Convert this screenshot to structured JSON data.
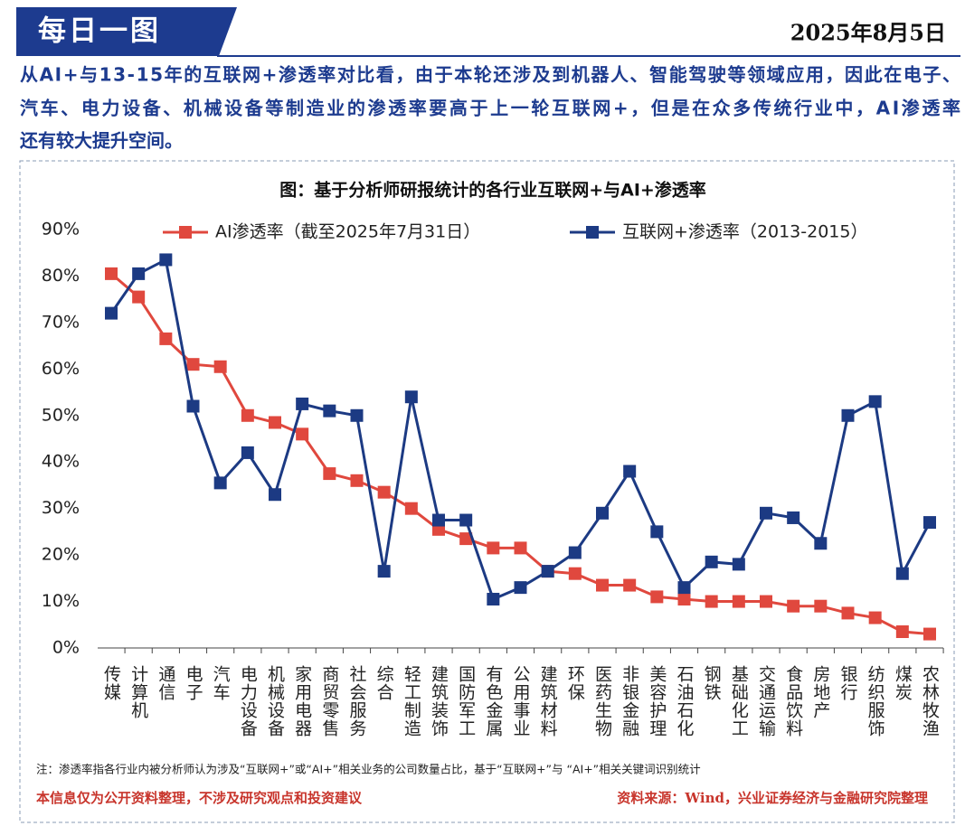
{
  "header": {
    "title": "每日一图",
    "date": "2025年8月5日"
  },
  "intro": [
    "从AI+与13-15年的互联网+渗透率对比看，由于本轮还涉及到机器人、智能驾驶等领域应用，因此在电子、",
    "汽车、电力设备、机械设备等制造业的渗透率要高于上一轮互联网+，但是在众多传统行业中，AI渗透率",
    "还有较大提升空间。"
  ],
  "chart_data": {
    "type": "line",
    "title": "图：基于分析师研报统计的各行业互联网+与AI+渗透率",
    "categories": [
      "传媒",
      "计算机",
      "通信",
      "电子",
      "汽车",
      "电力设备",
      "机械设备",
      "家用电器",
      "商贸零售",
      "社会服务",
      "综合",
      "轻工制造",
      "建筑装饰",
      "国防军工",
      "有色金属",
      "公用事业",
      "建筑材料",
      "环保",
      "医药生物",
      "非银金融",
      "美容护理",
      "石油石化",
      "钢铁",
      "基础化工",
      "交通运输",
      "食品饮料",
      "房地产",
      "银行",
      "纺织服饰",
      "煤炭",
      "农林牧渔"
    ],
    "series": [
      {
        "name": "AI渗透率（截至2025年7月31日）",
        "color": "#e0483e",
        "values": [
          80.5,
          75.5,
          66.5,
          61,
          60.5,
          50,
          48.5,
          46,
          37.5,
          36,
          33.5,
          30,
          25.5,
          23.5,
          21.5,
          21.5,
          16.5,
          16,
          13.5,
          13.5,
          11,
          10.5,
          10,
          10,
          10,
          9,
          9,
          7.5,
          6.5,
          3.5,
          3
        ]
      },
      {
        "name": "互联网+渗透率（2013-2015）",
        "color": "#1c3a83",
        "values": [
          72,
          80.5,
          83.5,
          52,
          35.5,
          42,
          33,
          52.5,
          51,
          50,
          16.5,
          54,
          27.5,
          27.5,
          10.5,
          13,
          16.5,
          20.5,
          29,
          38,
          25,
          13,
          18.5,
          18,
          29,
          28,
          22.5,
          50,
          53,
          16,
          27
        ]
      }
    ],
    "ylim": [
      0,
      90
    ],
    "yticks": [
      {
        "value": 0,
        "label": "0%"
      },
      {
        "value": 10,
        "label": "10%"
      },
      {
        "value": 20,
        "label": "20%"
      },
      {
        "value": 30,
        "label": "30%"
      },
      {
        "value": 40,
        "label": "40%"
      },
      {
        "value": 50,
        "label": "50%"
      },
      {
        "value": 60,
        "label": "60%"
      },
      {
        "value": 70,
        "label": "70%"
      },
      {
        "value": 80,
        "label": "80%"
      },
      {
        "value": 90,
        "label": "90%"
      }
    ],
    "grid": false,
    "legend": "top"
  },
  "note": "注：渗透率指各行业内被分析师认为涉及“互联网+”或“AI+”相关业务的公司数量占比，基于“互联网+”与 “AI+”相关关键词识别统计",
  "disclaimer": "本信息仅为公开资料整理，不涉及研究观点和投资建议",
  "source": "资料来源：Wind，兴业证券经济与金融研究院整理"
}
